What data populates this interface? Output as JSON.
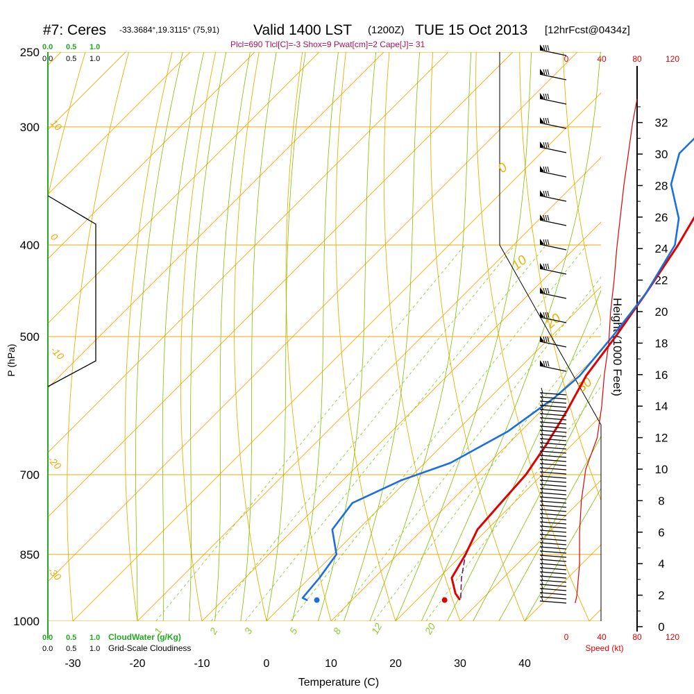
{
  "header": {
    "station": "#7: Ceres",
    "coords": "-33.3684°,19.3115° (75,91)",
    "valid": "Valid 1400 LST",
    "utc": "(1200Z)",
    "date": "TUE 15 Oct 2013",
    "forecast": "[12hrFcst@0434z]",
    "indices": "Plcl=690 Tlcl[C]=-3 Shox=9 Pwat[cm]=2 Cape[J]= 31"
  },
  "cloud_scales": {
    "water_ticks": [
      "0.0",
      "0.5",
      "1.0"
    ],
    "cover_ticks": [
      "0.0",
      "0.5",
      "1.0"
    ],
    "water_label": "CloudWater (g/Kg)",
    "cover_label": "Grid-Scale Cloudiness"
  },
  "speed_axis": {
    "ticks": [
      "0",
      "40",
      "80",
      "120"
    ],
    "label": "Speed (kt)"
  },
  "colors": {
    "temperature": "#e00000",
    "dewpoint": "#1a6fe0",
    "isotherm": "#f0a800",
    "dry_adiabat": "#e8b000",
    "moist_adiabat": "#7cc000",
    "mixing_ratio": "#8ccc30",
    "cloud": "#22aa22",
    "indices": "#aa1155",
    "speed": "#e00000"
  },
  "chart_data": {
    "type": "line",
    "title": "Skew-T log-P sounding",
    "xlabel": "Temperature (C)",
    "ylabel": "P (hPa)",
    "y2label": "Height (1000 Feet)",
    "x_ticks": [
      -30,
      -20,
      -10,
      0,
      10,
      20,
      30,
      40
    ],
    "p_ticks": [
      250,
      300,
      400,
      500,
      700,
      850,
      1000
    ],
    "height_ticks": [
      0,
      2,
      4,
      6,
      8,
      10,
      12,
      14,
      16,
      18,
      20,
      22,
      24,
      26,
      28,
      30,
      32
    ],
    "isotherm_labels": [
      "10",
      "0",
      "-10",
      "-20",
      "-30"
    ],
    "dry_adiabat_labels": [
      "0",
      "10",
      "20",
      "30"
    ],
    "mixing_ratio_labels": [
      "1",
      "2",
      "3",
      "5",
      "8",
      "12",
      "20"
    ],
    "series": [
      {
        "name": "Temperature",
        "points": [
          {
            "x": 26.5,
            "p": 948
          },
          {
            "x": 25.0,
            "p": 935
          },
          {
            "x": 22.0,
            "p": 900
          },
          {
            "x": 20.5,
            "p": 850
          },
          {
            "x": 18.5,
            "p": 800
          },
          {
            "x": 18.0,
            "p": 750
          },
          {
            "x": 17.5,
            "p": 700
          },
          {
            "x": 16.0,
            "p": 650
          },
          {
            "x": 14.0,
            "p": 600
          },
          {
            "x": 11.5,
            "p": 550
          },
          {
            "x": 10.0,
            "p": 500
          },
          {
            "x": 8.0,
            "p": 450
          },
          {
            "x": 5.5,
            "p": 400
          },
          {
            "x": 2.0,
            "p": 350
          },
          {
            "x": 0.0,
            "p": 300
          },
          {
            "x": -2.5,
            "p": 258
          }
        ]
      },
      {
        "name": "Dewpoint",
        "points": [
          {
            "x": 3.0,
            "p": 950
          },
          {
            "x": 2.0,
            "p": 945
          },
          {
            "x": 1.5,
            "p": 900
          },
          {
            "x": 0.5,
            "p": 850
          },
          {
            "x": -4.0,
            "p": 800
          },
          {
            "x": -5.0,
            "p": 750
          },
          {
            "x": -1.0,
            "p": 710
          },
          {
            "x": 4.0,
            "p": 680
          },
          {
            "x": 8.0,
            "p": 630
          },
          {
            "x": 10.0,
            "p": 580
          },
          {
            "x": 10.5,
            "p": 550
          },
          {
            "x": 9.5,
            "p": 500
          },
          {
            "x": 8.0,
            "p": 450
          },
          {
            "x": 5.0,
            "p": 400
          },
          {
            "x": 1.5,
            "p": 375
          },
          {
            "x": -5.0,
            "p": 345
          },
          {
            "x": -8.5,
            "p": 320
          },
          {
            "x": -8.5,
            "p": 290
          },
          {
            "x": -7.5,
            "p": 255
          }
        ]
      },
      {
        "name": "Parcel",
        "points": [
          {
            "x": 26.5,
            "p": 945
          },
          {
            "x": 23.5,
            "p": 900
          },
          {
            "x": 20.5,
            "p": 850
          }
        ]
      }
    ],
    "surface_temperature": {
      "x": 27.6,
      "p": 950
    },
    "surface_dewpoint": {
      "x": 7.8,
      "p": 950
    },
    "wind_speed_profile": [
      {
        "h": 1.5,
        "speed": 10
      },
      {
        "h": 2.0,
        "speed": 12
      },
      {
        "h": 4.0,
        "speed": 15
      },
      {
        "h": 6.0,
        "speed": 15
      },
      {
        "h": 8.0,
        "speed": 17
      },
      {
        "h": 10.0,
        "speed": 22
      },
      {
        "h": 12.0,
        "speed": 35
      },
      {
        "h": 14.0,
        "speed": 40
      },
      {
        "h": 16.0,
        "speed": 43
      },
      {
        "h": 18.0,
        "speed": 48
      },
      {
        "h": 20.0,
        "speed": 50
      },
      {
        "h": 22.0,
        "speed": 54
      },
      {
        "h": 24.0,
        "speed": 57
      },
      {
        "h": 26.0,
        "speed": 61
      },
      {
        "h": 28.0,
        "speed": 65
      },
      {
        "h": 30.0,
        "speed": 70
      },
      {
        "h": 32.0,
        "speed": 75
      },
      {
        "h": 33.5,
        "speed": 80
      }
    ]
  }
}
